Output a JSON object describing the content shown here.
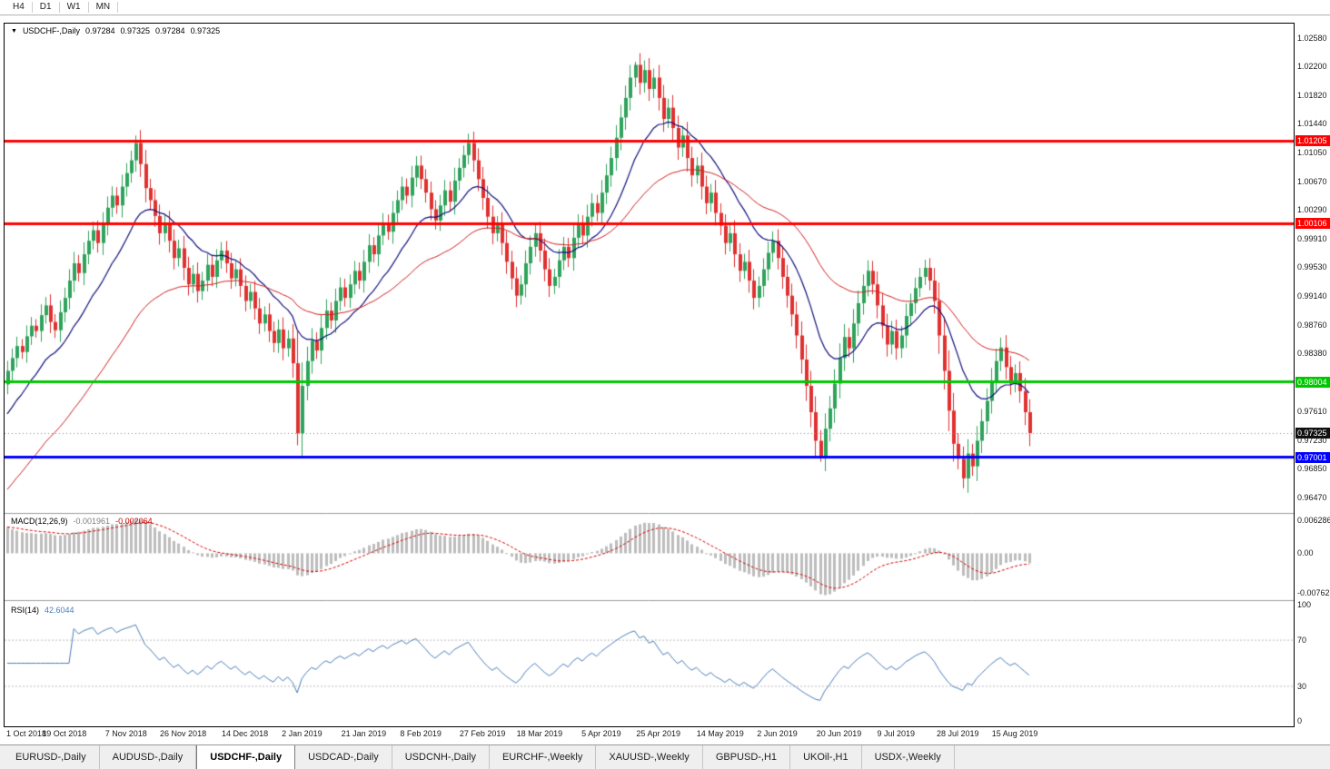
{
  "toolbar": {
    "timeframes": [
      "H4",
      "D1",
      "W1",
      "MN"
    ]
  },
  "chart_header": {
    "dropdown_glyph": "▼"
  },
  "colors": {
    "bull": "#2FA35B",
    "bear": "#E03131",
    "ma_fast": "#10107E",
    "ma_slow": "#D21F1F",
    "macd_hist": "#BDBDBD",
    "macd_signal": "#D40000",
    "rsi_line": "#4A7EBB",
    "current_tag_bg": "#101010",
    "panel_separator": "#9E9E9E",
    "dashed_level": "#BDBDBD"
  },
  "tabs": {
    "active_index": 2,
    "items": [
      "EURUSD-,Daily",
      "AUDUSD-,Daily",
      "USDCHF-,Daily",
      "USDCAD-,Daily",
      "USDCNH-,Daily",
      "EURCHF-,Weekly",
      "XAUUSD-,Weekly",
      "GBPUSD-,H1",
      "UKOil-,H1",
      "USDX-,Weekly"
    ]
  },
  "chart_data": {
    "type": "candlestick",
    "symbol_label": "USDCHF-,Daily",
    "ohlc_display": {
      "open": "0.97284",
      "high": "0.97325",
      "low": "0.97284",
      "close": "0.97325"
    },
    "y_axis": {
      "min": 0.9632,
      "max": 1.0272,
      "tick_labels": [
        "1.02580",
        "1.02200",
        "1.01820",
        "1.01440",
        "1.01050",
        "1.00670",
        "1.00290",
        "0.99910",
        "0.99530",
        "0.99140",
        "0.98760",
        "0.98380",
        "0.97610",
        "0.97230",
        "0.96850",
        "0.96470"
      ]
    },
    "x_tick_labels": [
      "1 Oct 2018",
      "19 Oct 2018",
      "7 Nov 2018",
      "26 Nov 2018",
      "14 Dec 2018",
      "2 Jan 2019",
      "21 Jan 2019",
      "8 Feb 2019",
      "27 Feb 2019",
      "18 Mar 2019",
      "5 Apr 2019",
      "25 Apr 2019",
      "14 May 2019",
      "2 Jun 2019",
      "20 Jun 2019",
      "9 Jul 2019",
      "28 Jul 2019",
      "15 Aug 2019"
    ],
    "horizontal_lines": [
      {
        "value": 1.01205,
        "label": "1.01205",
        "color": "#FF0000"
      },
      {
        "value": 1.00106,
        "label": "1.00106",
        "color": "#FF0000"
      },
      {
        "value": 0.98004,
        "label": "0.98004",
        "color": "#00C800"
      },
      {
        "value": 0.97001,
        "label": "0.97001",
        "color": "#0000FF"
      }
    ],
    "current_price": {
      "value": 0.97325,
      "label": "0.97325"
    },
    "closes": [
      0.9815,
      0.9832,
      0.9848,
      0.984,
      0.9861,
      0.9875,
      0.9868,
      0.9889,
      0.9902,
      0.988,
      0.9869,
      0.9893,
      0.9912,
      0.9935,
      0.9958,
      0.9945,
      0.997,
      0.9988,
      1.0002,
      0.9985,
      1.001,
      1.0032,
      1.0048,
      1.0035,
      1.006,
      1.0078,
      1.0095,
      1.0118,
      1.009,
      1.0058,
      1.0042,
      1.0021,
      0.9998,
      1.0012,
      0.9988,
      0.9965,
      0.9978,
      0.9952,
      0.993,
      0.9944,
      0.9921,
      0.9935,
      0.9956,
      0.994,
      0.9962,
      0.9975,
      0.9958,
      0.9938,
      0.995,
      0.9928,
      0.9908,
      0.992,
      0.9898,
      0.9878,
      0.989,
      0.9868,
      0.9852,
      0.987,
      0.9845,
      0.9858,
      0.9825,
      0.9732,
      0.9795,
      0.9828,
      0.9855,
      0.9842,
      0.9872,
      0.9895,
      0.9882,
      0.9908,
      0.9926,
      0.9912,
      0.993,
      0.9948,
      0.9935,
      0.996,
      0.9982,
      0.997,
      0.9995,
      1.0012,
      1.0,
      1.0025,
      1.0042,
      1.006,
      1.0048,
      1.0072,
      1.0088,
      1.007,
      1.0052,
      1.003,
      1.0015,
      1.0035,
      1.0055,
      1.004,
      1.0068,
      1.0085,
      1.0102,
      1.0118,
      1.0095,
      1.007,
      1.0045,
      1.002,
      0.9998,
      1.001,
      0.9985,
      0.996,
      0.9938,
      0.9915,
      0.993,
      0.9958,
      0.998,
      0.9998,
      0.9975,
      0.995,
      0.9928,
      0.994,
      0.9962,
      0.998,
      0.9965,
      0.9992,
      1.001,
      0.9995,
      1.002,
      1.0038,
      1.0025,
      1.0052,
      1.0075,
      1.0098,
      1.0125,
      1.0152,
      1.0178,
      1.0205,
      1.0222,
      1.0198,
      1.0215,
      1.019,
      1.0205,
      1.0178,
      1.015,
      1.0165,
      1.0138,
      1.0112,
      1.0128,
      1.0098,
      1.0075,
      1.0088,
      1.006,
      1.0038,
      1.0052,
      1.0025,
      1.0008,
      0.9985,
      0.9998,
      0.997,
      0.9948,
      0.996,
      0.9935,
      0.9912,
      0.9928,
      0.995,
      0.9972,
      0.9988,
      0.9965,
      0.994,
      0.9915,
      0.989,
      0.9862,
      0.983,
      0.9795,
      0.976,
      0.9722,
      0.9702,
      0.9738,
      0.9765,
      0.9798,
      0.9832,
      0.986,
      0.9845,
      0.9878,
      0.9905,
      0.9928,
      0.9948,
      0.993,
      0.9902,
      0.9875,
      0.985,
      0.9868,
      0.9845,
      0.9862,
      0.9888,
      0.9905,
      0.9925,
      0.994,
      0.9952,
      0.9935,
      0.9908,
      0.9862,
      0.9815,
      0.9762,
      0.9718,
      0.9698,
      0.9672,
      0.9705,
      0.9688,
      0.9722,
      0.9748,
      0.9775,
      0.9802,
      0.9828,
      0.9846,
      0.982,
      0.9798,
      0.9812,
      0.9788,
      0.976,
      0.9732
    ],
    "wick_base": 0.0006,
    "wick_overrides": [
      {
        "i": 27,
        "high": 1.0128
      },
      {
        "i": 61,
        "low": 0.9716
      },
      {
        "i": 132,
        "high": 1.0226
      },
      {
        "i": 171,
        "low": 0.9694
      },
      {
        "i": 201,
        "low": 0.9659
      }
    ],
    "moving_averages": [
      {
        "kind": "ema",
        "period": 16,
        "seed": 0.975,
        "color": "#10107E",
        "width": 1.2
      },
      {
        "kind": "ema",
        "period": 45,
        "seed": 0.965,
        "color": "#D21F1F",
        "width": 1
      }
    ],
    "indicators": {
      "macd": {
        "title": "MACD(12,26,9)",
        "fast": 12,
        "slow": 26,
        "signal": 9,
        "value_main": "-0.001961",
        "value_signal": "-0.002064",
        "scale_labels": [
          "0.006286",
          "0.00",
          "-0.00762"
        ],
        "scale": {
          "min": -0.008,
          "max": 0.0066
        }
      },
      "rsi": {
        "title": "RSI(14)",
        "period": 14,
        "value": "42.6044",
        "levels": [
          70,
          30
        ],
        "scale_labels": [
          "100",
          "70",
          "30",
          "0"
        ]
      }
    }
  }
}
